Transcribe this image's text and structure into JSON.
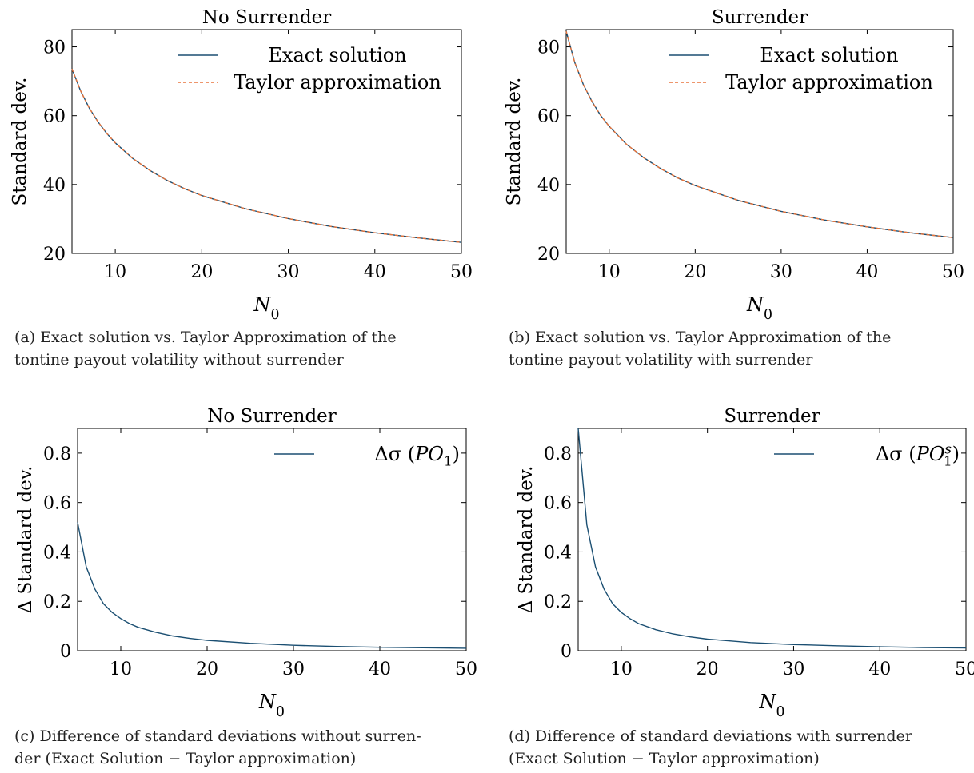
{
  "charts": [
    {
      "id": "a",
      "caption": "(a) Exact solution vs. Taylor Approximation of the\ntontine payout volatility without surrender",
      "chart_data": {
        "type": "line",
        "title": "No Surrender",
        "xlabel": "N0",
        "ylabel": "Standard dev.",
        "xlim": [
          5,
          50
        ],
        "ylim": [
          20,
          85
        ],
        "xticks": [
          10,
          20,
          30,
          40,
          50
        ],
        "yticks": [
          20,
          40,
          60,
          80
        ],
        "legend_position": "top-right",
        "grid": false,
        "series": [
          {
            "name": "Exact solution",
            "color": "#1b4f72",
            "dash": "solid",
            "x": [
              5,
              6,
              7,
              8,
              9,
              10,
              12,
              14,
              16,
              18,
              20,
              25,
              30,
              35,
              40,
              45,
              50
            ],
            "y": [
              73.6,
              67.2,
              62.2,
              58.2,
              54.9,
              52.1,
              47.6,
              44.1,
              41.2,
              38.8,
              36.8,
              33.0,
              30.1,
              27.8,
              26.0,
              24.5,
              23.2
            ]
          },
          {
            "name": "Taylor approximation",
            "color": "#e8743b",
            "dash": "dashed",
            "x": [
              5,
              6,
              7,
              8,
              9,
              10,
              12,
              14,
              16,
              18,
              20,
              25,
              30,
              35,
              40,
              45,
              50
            ],
            "y": [
              73.6,
              67.2,
              62.2,
              58.2,
              54.9,
              52.1,
              47.6,
              44.1,
              41.2,
              38.8,
              36.8,
              33.0,
              30.1,
              27.8,
              26.0,
              24.5,
              23.2
            ]
          }
        ]
      }
    },
    {
      "id": "b",
      "caption": "(b) Exact solution vs. Taylor Approximation of the\ntontine payout volatility with surrender",
      "chart_data": {
        "type": "line",
        "title": "Surrender",
        "xlabel": "N0",
        "ylabel": "Standard dev.",
        "xlim": [
          5,
          50
        ],
        "ylim": [
          20,
          85
        ],
        "xticks": [
          10,
          20,
          30,
          40,
          50
        ],
        "yticks": [
          20,
          40,
          60,
          80
        ],
        "legend_position": "top-right",
        "grid": false,
        "series": [
          {
            "name": "Exact solution",
            "color": "#1b4f72",
            "dash": "solid",
            "x": [
              5,
              6,
              7,
              8,
              9,
              10,
              12,
              14,
              16,
              18,
              20,
              25,
              30,
              35,
              40,
              45,
              50
            ],
            "y": [
              84.5,
              75.4,
              69.0,
              64.1,
              60.1,
              56.9,
              51.7,
              47.8,
              44.6,
              41.9,
              39.7,
              35.4,
              32.2,
              29.7,
              27.7,
              26.0,
              24.6
            ]
          },
          {
            "name": "Taylor approximation",
            "color": "#e8743b",
            "dash": "dashed",
            "x": [
              5,
              6,
              7,
              8,
              9,
              10,
              12,
              14,
              16,
              18,
              20,
              25,
              30,
              35,
              40,
              45,
              50
            ],
            "y": [
              84.5,
              75.4,
              69.0,
              64.1,
              60.1,
              56.9,
              51.7,
              47.8,
              44.6,
              41.9,
              39.7,
              35.4,
              32.2,
              29.7,
              27.7,
              26.0,
              24.6
            ]
          }
        ]
      }
    },
    {
      "id": "c",
      "caption": "(c) Difference of standard deviations without surren-\nder (Exact Solution − Taylor approximation)",
      "chart_data": {
        "type": "line",
        "title": "No Surrender",
        "xlabel": "N0",
        "ylabel": "Δ Standard dev.",
        "xlim": [
          5,
          50
        ],
        "ylim": [
          0,
          0.9
        ],
        "xticks": [
          10,
          20,
          30,
          40,
          50
        ],
        "yticks": [
          0,
          0.2,
          0.4,
          0.6,
          0.8
        ],
        "legend_position": "top-right",
        "grid": false,
        "series": [
          {
            "name": "Δσ (PO1)",
            "color": "#1b4f72",
            "dash": "solid",
            "x": [
              5,
              6,
              7,
              8,
              9,
              10,
              11,
              12,
              14,
              16,
              18,
              20,
              25,
              30,
              35,
              40,
              45,
              50
            ],
            "y": [
              0.52,
              0.34,
              0.25,
              0.19,
              0.155,
              0.13,
              0.11,
              0.095,
              0.075,
              0.06,
              0.05,
              0.042,
              0.03,
              0.022,
              0.017,
              0.014,
              0.012,
              0.01
            ]
          }
        ]
      }
    },
    {
      "id": "d",
      "caption": "(d) Difference of standard deviations with surrender\n(Exact Solution − Taylor approximation)",
      "chart_data": {
        "type": "line",
        "title": "Surrender",
        "xlabel": "N0",
        "ylabel": "Δ Standard dev.",
        "xlim": [
          5,
          50
        ],
        "ylim": [
          0,
          0.9
        ],
        "xticks": [
          10,
          20,
          30,
          40,
          50
        ],
        "yticks": [
          0,
          0.2,
          0.4,
          0.6,
          0.8
        ],
        "legend_position": "top-right",
        "grid": false,
        "series": [
          {
            "name": "Δσ (PO1s)",
            "color": "#1b4f72",
            "dash": "solid",
            "x": [
              5,
              6,
              7,
              8,
              9,
              10,
              11,
              12,
              14,
              16,
              18,
              20,
              25,
              30,
              35,
              40,
              45,
              50
            ],
            "y": [
              0.9,
              0.51,
              0.34,
              0.25,
              0.19,
              0.155,
              0.13,
              0.11,
              0.085,
              0.068,
              0.056,
              0.047,
              0.033,
              0.025,
              0.02,
              0.016,
              0.013,
              0.011
            ]
          }
        ]
      }
    }
  ]
}
